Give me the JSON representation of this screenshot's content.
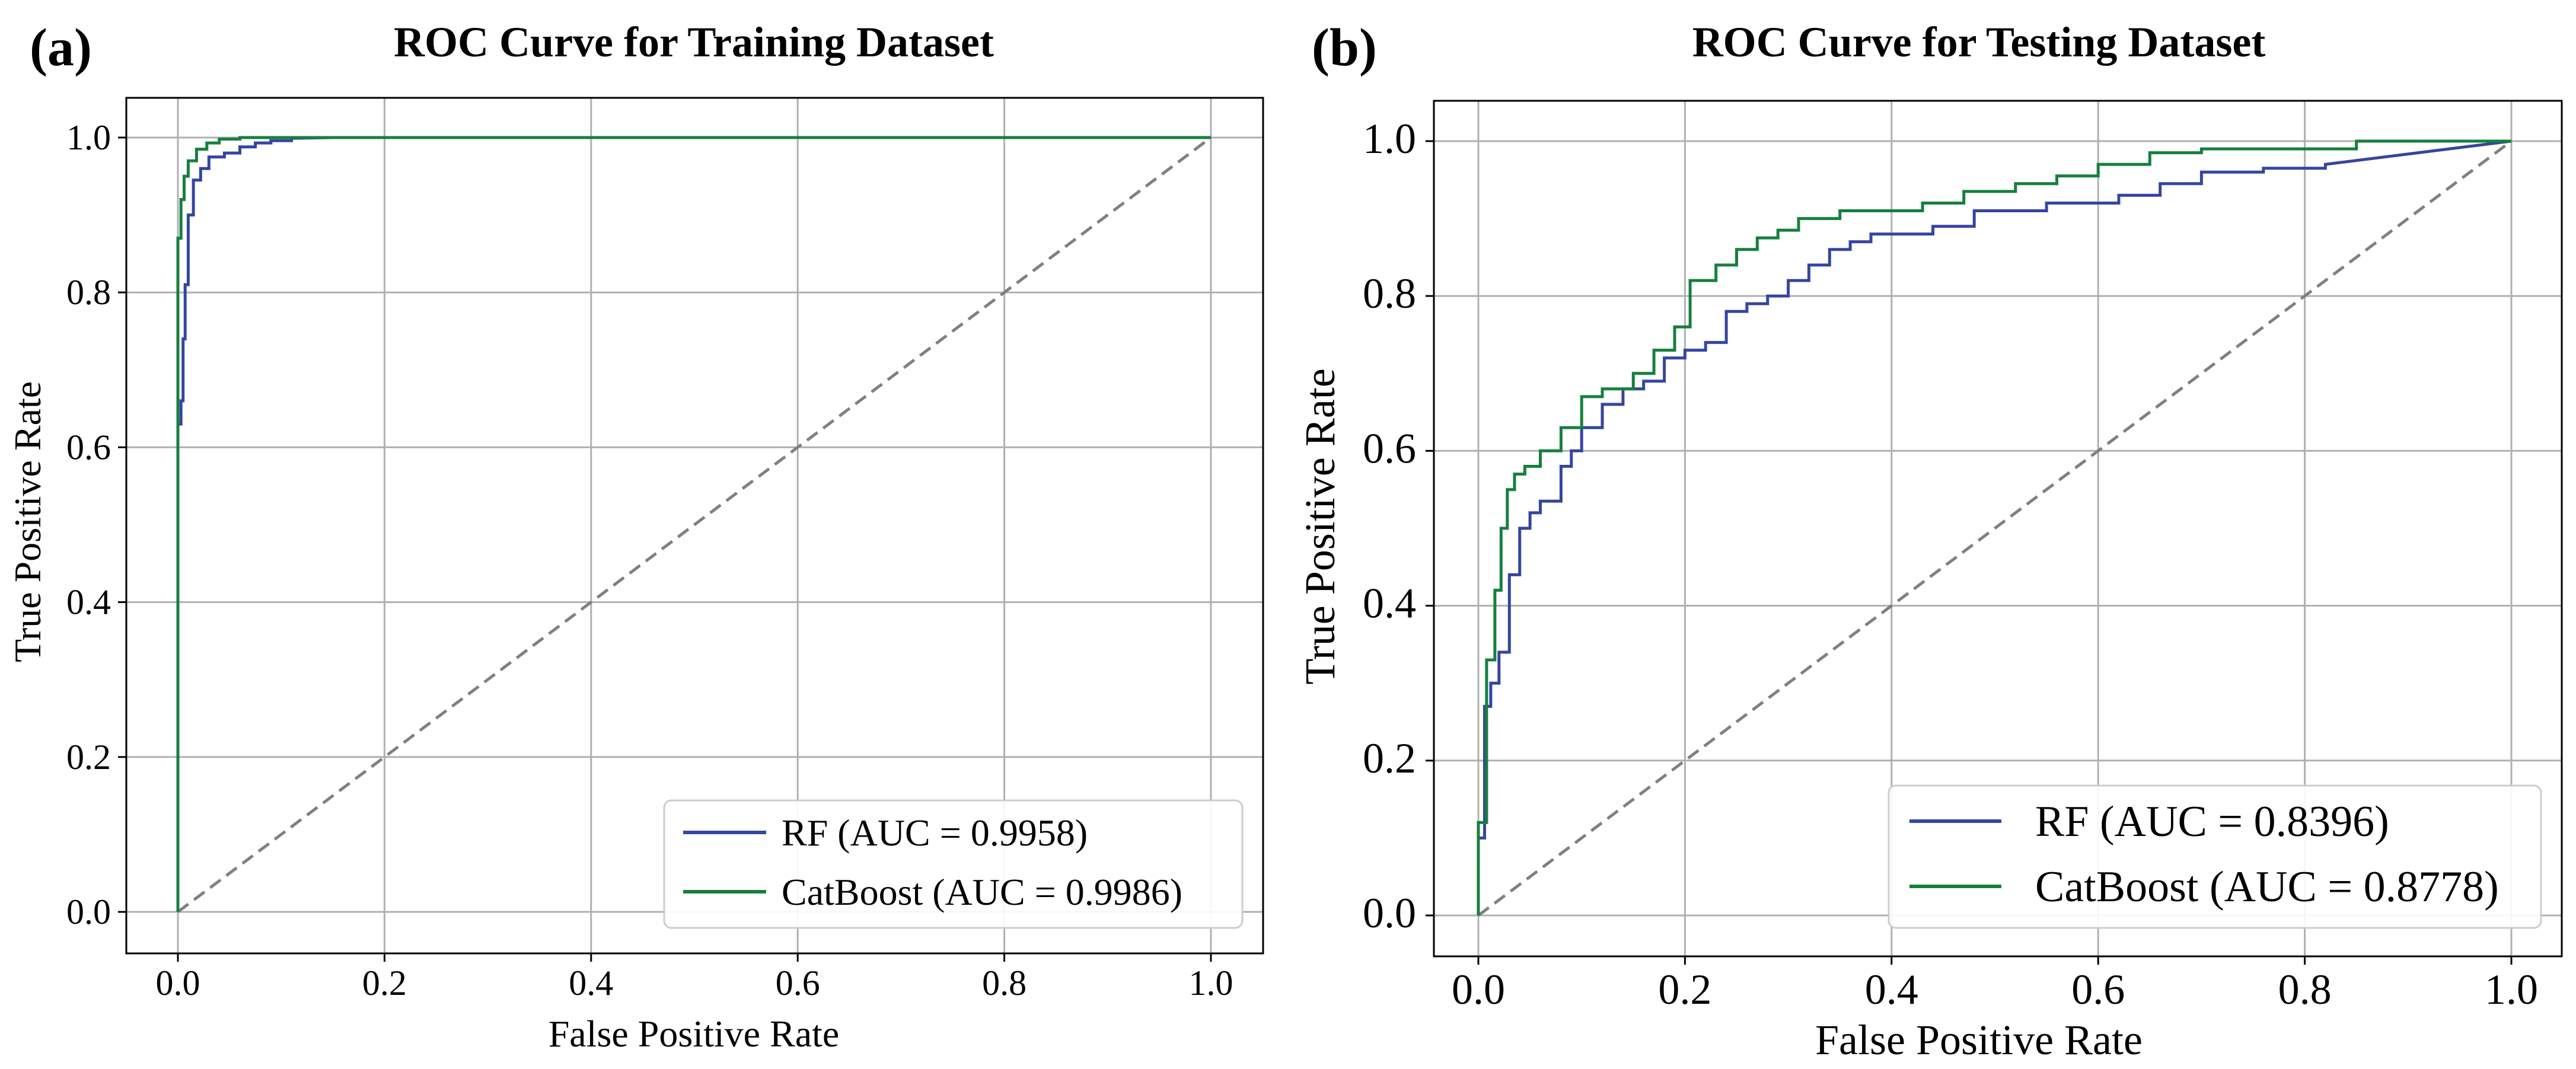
{
  "colors": {
    "rf": "#3446a0",
    "catboost": "#15803d",
    "diagonal": "#808080",
    "grid": "#b0b0b0"
  },
  "chart_data": [
    {
      "panel_label": "(a)",
      "type": "line",
      "title": "ROC Curve for Training Dataset",
      "xlabel": "False Positive Rate",
      "ylabel": "True Positive Rate",
      "xlim": [
        0.0,
        1.0
      ],
      "ylim": [
        0.0,
        1.0
      ],
      "xticks": [
        "0.0",
        "0.2",
        "0.4",
        "0.6",
        "0.8",
        "1.0"
      ],
      "yticks": [
        "0.0",
        "0.2",
        "0.4",
        "0.6",
        "0.8",
        "1.0"
      ],
      "grid": true,
      "legend_position": "bottom-right",
      "diagonal": true,
      "series": [
        {
          "name": "RF (AUC = 0.9958)",
          "color_key": "rf",
          "x": [
            0.0,
            0.0,
            0.003,
            0.003,
            0.005,
            0.005,
            0.007,
            0.007,
            0.01,
            0.01,
            0.015,
            0.015,
            0.022,
            0.022,
            0.03,
            0.03,
            0.045,
            0.045,
            0.06,
            0.06,
            0.075,
            0.075,
            0.09,
            0.09,
            0.11,
            0.11,
            0.15,
            1.0
          ],
          "y": [
            0.0,
            0.63,
            0.63,
            0.66,
            0.66,
            0.74,
            0.74,
            0.81,
            0.81,
            0.9,
            0.9,
            0.945,
            0.945,
            0.96,
            0.96,
            0.975,
            0.975,
            0.98,
            0.98,
            0.988,
            0.988,
            0.993,
            0.993,
            0.996,
            0.996,
            0.999,
            1.0,
            1.0
          ]
        },
        {
          "name": "CatBoost (AUC = 0.9986)",
          "color_key": "catboost",
          "x": [
            0.0,
            0.0,
            0.003,
            0.003,
            0.006,
            0.006,
            0.01,
            0.01,
            0.018,
            0.018,
            0.028,
            0.028,
            0.04,
            0.04,
            0.06,
            0.06,
            1.0
          ],
          "y": [
            0.0,
            0.87,
            0.87,
            0.92,
            0.92,
            0.95,
            0.95,
            0.97,
            0.97,
            0.985,
            0.985,
            0.993,
            0.993,
            0.998,
            0.998,
            1.0,
            1.0
          ]
        }
      ]
    },
    {
      "panel_label": "(b)",
      "type": "line",
      "title": "ROC Curve for Testing Dataset",
      "xlabel": "False Positive Rate",
      "ylabel": "True Positive Rate",
      "xlim": [
        0.0,
        1.0
      ],
      "ylim": [
        0.0,
        1.0
      ],
      "xticks": [
        "0.0",
        "0.2",
        "0.4",
        "0.6",
        "0.8",
        "1.0"
      ],
      "yticks": [
        "0.0",
        "0.2",
        "0.4",
        "0.6",
        "0.8",
        "1.0"
      ],
      "grid": true,
      "legend_position": "bottom-right",
      "diagonal": true,
      "series": [
        {
          "name": "RF (AUC = 0.8396)",
          "color_key": "rf",
          "x": [
            0.0,
            0.0,
            0.006,
            0.006,
            0.012,
            0.012,
            0.02,
            0.02,
            0.03,
            0.03,
            0.04,
            0.04,
            0.05,
            0.05,
            0.06,
            0.06,
            0.08,
            0.08,
            0.09,
            0.09,
            0.1,
            0.1,
            0.12,
            0.12,
            0.14,
            0.14,
            0.16,
            0.16,
            0.18,
            0.18,
            0.2,
            0.2,
            0.22,
            0.22,
            0.24,
            0.24,
            0.26,
            0.26,
            0.28,
            0.28,
            0.3,
            0.3,
            0.32,
            0.32,
            0.34,
            0.34,
            0.36,
            0.36,
            0.38,
            0.38,
            0.44,
            0.44,
            0.48,
            0.48,
            0.55,
            0.55,
            0.62,
            0.62,
            0.66,
            0.66,
            0.7,
            0.7,
            0.76,
            0.76,
            0.82,
            0.82,
            1.0
          ],
          "y": [
            0.0,
            0.1,
            0.1,
            0.27,
            0.27,
            0.3,
            0.3,
            0.34,
            0.34,
            0.44,
            0.44,
            0.5,
            0.5,
            0.52,
            0.52,
            0.535,
            0.535,
            0.58,
            0.58,
            0.6,
            0.6,
            0.63,
            0.63,
            0.66,
            0.66,
            0.68,
            0.68,
            0.69,
            0.69,
            0.72,
            0.72,
            0.73,
            0.73,
            0.74,
            0.74,
            0.78,
            0.78,
            0.79,
            0.79,
            0.8,
            0.8,
            0.82,
            0.82,
            0.84,
            0.84,
            0.86,
            0.86,
            0.87,
            0.87,
            0.88,
            0.88,
            0.89,
            0.89,
            0.91,
            0.91,
            0.92,
            0.92,
            0.93,
            0.93,
            0.945,
            0.945,
            0.96,
            0.96,
            0.965,
            0.965,
            0.97,
            1.0
          ]
        },
        {
          "name": "CatBoost (AUC = 0.8778)",
          "color_key": "catboost",
          "x": [
            0.0,
            0.0,
            0.008,
            0.008,
            0.016,
            0.016,
            0.022,
            0.022,
            0.028,
            0.028,
            0.035,
            0.035,
            0.045,
            0.045,
            0.06,
            0.06,
            0.08,
            0.08,
            0.1,
            0.1,
            0.12,
            0.12,
            0.15,
            0.15,
            0.17,
            0.17,
            0.19,
            0.19,
            0.205,
            0.205,
            0.23,
            0.23,
            0.25,
            0.25,
            0.27,
            0.27,
            0.29,
            0.29,
            0.31,
            0.31,
            0.35,
            0.35,
            0.43,
            0.43,
            0.47,
            0.47,
            0.52,
            0.52,
            0.56,
            0.56,
            0.6,
            0.6,
            0.65,
            0.65,
            0.7,
            0.7,
            0.85,
            0.85,
            1.0
          ],
          "y": [
            0.0,
            0.12,
            0.12,
            0.33,
            0.33,
            0.42,
            0.42,
            0.5,
            0.5,
            0.55,
            0.55,
            0.57,
            0.57,
            0.58,
            0.58,
            0.6,
            0.6,
            0.63,
            0.63,
            0.67,
            0.67,
            0.68,
            0.68,
            0.7,
            0.7,
            0.73,
            0.73,
            0.76,
            0.76,
            0.82,
            0.82,
            0.84,
            0.84,
            0.86,
            0.86,
            0.875,
            0.875,
            0.885,
            0.885,
            0.9,
            0.9,
            0.91,
            0.91,
            0.92,
            0.92,
            0.935,
            0.935,
            0.945,
            0.945,
            0.955,
            0.955,
            0.97,
            0.97,
            0.985,
            0.985,
            0.99,
            0.99,
            1.0,
            1.0
          ]
        }
      ]
    }
  ]
}
